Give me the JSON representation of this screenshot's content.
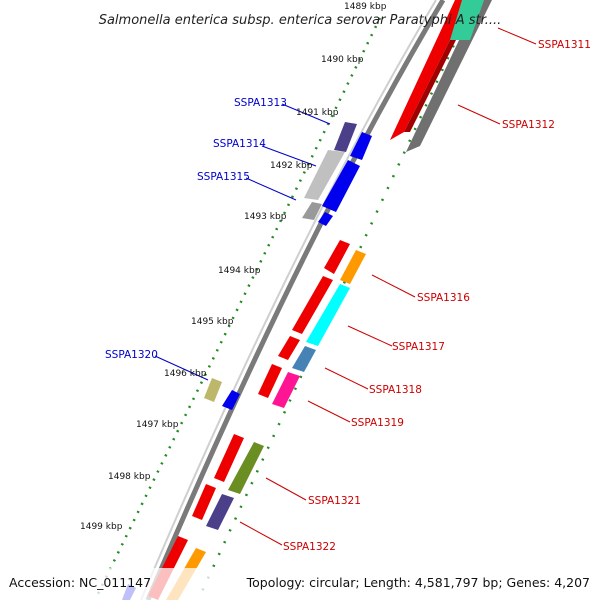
{
  "title": "Salmonella enterica subsp. enterica serovar Paratyphi A str....",
  "accession": "Accession: NC_011147",
  "summary": "Topology: circular; Length: 4,581,797 bp; Genes: 4,207",
  "ticks": [
    "1489 kbp",
    "1490 kbp",
    "1491 kbp",
    "1492 kbp",
    "1493 kbp",
    "1494 kbp",
    "1495 kbp",
    "1496 kbp",
    "1497 kbp",
    "1498 kbp",
    "1499 kbp"
  ],
  "genes_right": [
    "SSPA1311",
    "SSPA1312",
    "SSPA1316",
    "SSPA1317",
    "SSPA1318",
    "SSPA1319",
    "SSPA1321",
    "SSPA1322"
  ],
  "genes_left": [
    "SSPA1313",
    "SSPA1314",
    "SSPA1315",
    "SSPA1320"
  ],
  "colors": {
    "right_label": "#cc0000",
    "left_label": "#0000cc",
    "cds_forward": "#0000ee",
    "cds_reverse": "#ee0000",
    "backbone": "#888888",
    "tick_dots": "#228b22"
  }
}
